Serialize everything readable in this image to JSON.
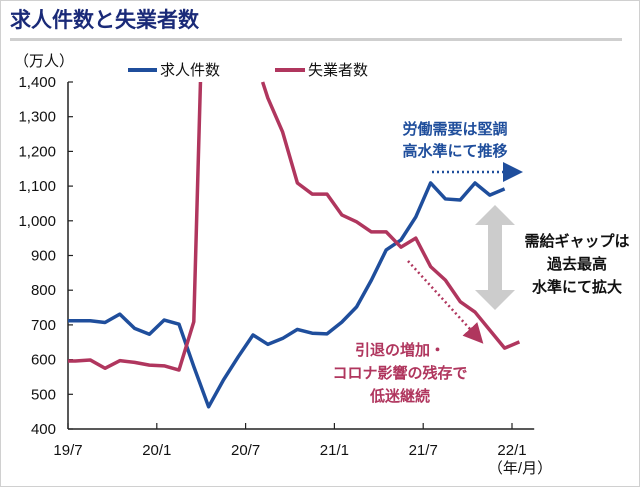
{
  "title": "求人件数と失業者数",
  "chart_data": {
    "type": "line",
    "title": "求人件数と失業者数",
    "ylabel": "（万人）",
    "xlabel": "（年/月）",
    "ylim": [
      400,
      1400
    ],
    "yticks": [
      "400",
      "500",
      "600",
      "700",
      "800",
      "900",
      "1,000",
      "1,100",
      "1,200",
      "1,300",
      "1,400"
    ],
    "xticks": [
      "19/7",
      "20/1",
      "20/7",
      "21/1",
      "21/7",
      "22/1"
    ],
    "x": [
      "19/7",
      "19/8",
      "19/9",
      "19/10",
      "19/11",
      "19/12",
      "20/1",
      "20/2",
      "20/3",
      "20/4",
      "20/5",
      "20/6",
      "20/7",
      "20/8",
      "20/9",
      "20/10",
      "20/11",
      "20/12",
      "21/1",
      "21/2",
      "21/3",
      "21/4",
      "21/5",
      "21/6",
      "21/7",
      "21/8",
      "21/9",
      "21/10",
      "21/11",
      "21/12",
      "22/1"
    ],
    "grid": false,
    "legend": "top",
    "series": [
      {
        "name": "求人件数",
        "color": "#1f4e9c",
        "values": [
          712,
          712,
          707,
          731,
          690,
          673,
          714,
          702,
          580,
          464,
          541,
          608,
          671,
          644,
          661,
          687,
          676,
          674,
          708,
          752,
          829,
          916,
          945,
          1011,
          1109,
          1063,
          1060,
          1109,
          1074,
          1092,
          null
        ]
      },
      {
        "name": "失業者数",
        "color": "#b0365e",
        "values": [
          596,
          599,
          575,
          597,
          592,
          584,
          582,
          570,
          709,
          null,
          null,
          null,
          null,
          1354,
          1256,
          1109,
          1077,
          1077,
          1017,
          997,
          968,
          968,
          924,
          950,
          868,
          829,
          767,
          737,
          685,
          633,
          651
        ]
      }
    ],
    "annotations": {
      "demand": [
        "労働需要は堅調",
        "高水準にて推移"
      ],
      "gap": [
        "需給ギャップは",
        "過去最高",
        "水準にて拡大"
      ],
      "supply": [
        "引退の増加・",
        "コロナ影響の残存で",
        "低迷継続"
      ]
    }
  }
}
